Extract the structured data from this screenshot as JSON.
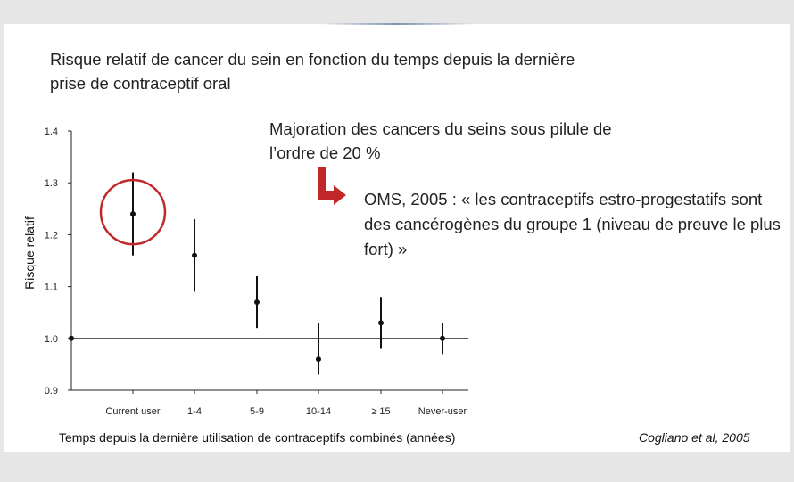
{
  "slide": {
    "title": "Risque relatif de cancer du sein en fonction du temps depuis la dernière prise de contraceptif oral",
    "note1": "Majoration des cancers du seins sous pilule de l’ordre de 20 %",
    "note2": "OMS, 2005 :  « les contraceptifs estro-progestatifs sont des cancérogènes du groupe 1  (niveau de preuve le plus fort) »",
    "citation": "Cogliano et al, 2005",
    "arrow_color": "#c0282a",
    "circle_color": "#c0282a"
  },
  "chart_data": {
    "type": "scatter",
    "xlabel": "Temps depuis la dernière utilisation de contraceptifs combinés (années)",
    "ylabel": "Risque relatif",
    "ylim": [
      0.9,
      1.4
    ],
    "yticks": [
      "1.4",
      "1.3",
      "1.2",
      "1.1",
      "1.0",
      "0.9"
    ],
    "reference_line": 1.0,
    "categories": [
      "Current user",
      "1-4",
      "5-9",
      "10-14",
      "≥ 15",
      "Never-user"
    ],
    "series": [
      {
        "values": [
          1.24,
          1.16,
          1.07,
          0.96,
          1.03,
          1.0
        ],
        "ci_low": [
          1.16,
          1.09,
          1.02,
          0.93,
          0.98,
          0.97
        ],
        "ci_high": [
          1.32,
          1.23,
          1.12,
          1.03,
          1.08,
          1.03
        ]
      }
    ],
    "highlight_category": "Current user"
  }
}
